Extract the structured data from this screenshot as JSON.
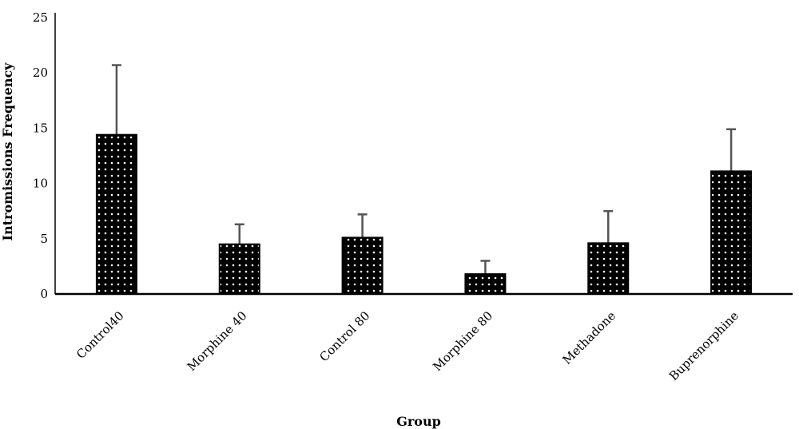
{
  "chart_data": {
    "type": "bar",
    "title": "",
    "xlabel": "Group",
    "ylabel": "Intromissions Frequency",
    "ylim": [
      0,
      25
    ],
    "yticks": [
      0,
      5,
      10,
      15,
      20,
      25
    ],
    "grid": false,
    "legend": "none",
    "categories": [
      "Control40",
      "Morphine 40",
      "Control 80",
      "Morphine 80",
      "Methadone",
      "Buprenorphine"
    ],
    "values": [
      14.4,
      4.5,
      5.1,
      1.8,
      4.6,
      11.1
    ],
    "error": [
      6.3,
      1.8,
      2.1,
      1.2,
      2.9,
      3.8
    ],
    "bar_color": "#000000",
    "bar_pattern_color": "#ffffff",
    "error_bar_color": "#555555"
  }
}
